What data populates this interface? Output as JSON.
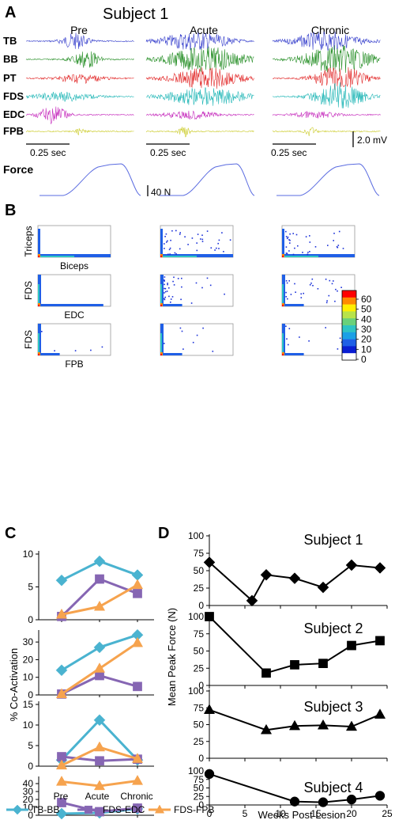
{
  "panels": {
    "A": "A",
    "B": "B",
    "C": "C",
    "D": "D"
  },
  "subject_title": "Subject 1",
  "conditions": [
    "Pre",
    "Acute",
    "Chronic"
  ],
  "panel_a": {
    "channels": [
      {
        "name": "TB",
        "color": "#2b35c9"
      },
      {
        "name": "BB",
        "color": "#1e8a1e"
      },
      {
        "name": "PT",
        "color": "#e02020"
      },
      {
        "name": "FDS",
        "color": "#17b3b3"
      },
      {
        "name": "EDC",
        "color": "#c21fb8"
      },
      {
        "name": "FPB",
        "color": "#c8c81c"
      }
    ],
    "time_scale": "0.25 sec",
    "emg_scale": "2.0 mV",
    "force_label": "Force",
    "force_scale": "40 N",
    "force_color": "#5a6be0"
  },
  "panel_b": {
    "rows": [
      {
        "ylabel": "Triceps",
        "xlabel": "Biceps"
      },
      {
        "ylabel": "FDS",
        "xlabel": "EDC"
      },
      {
        "ylabel": "FDS",
        "xlabel": "FPB"
      }
    ],
    "colorbar_ticks": [
      "60",
      "50",
      "40",
      "30",
      "20",
      "10",
      "0"
    ],
    "colorbar_colors": [
      "#ff0000",
      "#ff8a00",
      "#ffee00",
      "#b8e34a",
      "#6ad17a",
      "#2ec4c4",
      "#1aa0e6",
      "#1f5fe6",
      "#0a1ed2",
      "#ffffff"
    ]
  },
  "chart_data": [
    {
      "type": "line",
      "ylabel": "% Co-Activation",
      "categories": [
        "Pre",
        "Acute",
        "Chronic"
      ],
      "legend": "bottom",
      "subplots": [
        {
          "ylim": [
            0,
            10
          ],
          "yticks": [
            0,
            5,
            10
          ],
          "series": [
            {
              "name": "TB-BB",
              "values": [
                6.0,
                8.9,
                6.8
              ]
            },
            {
              "name": "FDS-EDC",
              "values": [
                0.5,
                6.2,
                4.0
              ]
            },
            {
              "name": "FDS-FPB",
              "values": [
                0.8,
                2.0,
                5.3
              ]
            }
          ]
        },
        {
          "ylim": [
            0,
            35
          ],
          "yticks": [
            0,
            10,
            20,
            30
          ],
          "series": [
            {
              "name": "TB-BB",
              "values": [
                14,
                27,
                34
              ]
            },
            {
              "name": "FDS-EDC",
              "values": [
                0.5,
                11,
                4.8
              ]
            },
            {
              "name": "FDS-FPB",
              "values": [
                0.5,
                15,
                29.5
              ]
            }
          ]
        },
        {
          "ylim": [
            0,
            15
          ],
          "yticks": [
            0,
            5,
            10,
            15
          ],
          "series": [
            {
              "name": "TB-BB",
              "values": [
                1.5,
                11.2,
                1.5
              ]
            },
            {
              "name": "FDS-EDC",
              "values": [
                2.3,
                1.3,
                1.7
              ]
            },
            {
              "name": "FDS-FPB",
              "values": [
                0.2,
                4.6,
                1.8
              ]
            }
          ]
        },
        {
          "ylim": [
            0,
            45
          ],
          "yticks": [
            0,
            10,
            20,
            30,
            40
          ],
          "series": [
            {
              "name": "TB-BB",
              "values": [
                2,
                3,
                8
              ]
            },
            {
              "name": "FDS-EDC",
              "values": [
                16,
                4.5,
                9
              ]
            },
            {
              "name": "FDS-FPB",
              "values": [
                42.5,
                37,
                43.5
              ]
            }
          ]
        }
      ],
      "series_styles": [
        {
          "name": "TB-BB",
          "color": "#4ab3d0",
          "marker": "diamond"
        },
        {
          "name": "FDS-EDC",
          "color": "#8666b3",
          "marker": "square"
        },
        {
          "name": "FDS-FPB",
          "color": "#f6a34e",
          "marker": "triangle"
        }
      ]
    },
    {
      "type": "line",
      "ylabel": "Mean Peak Force (N)",
      "xlabel": "Weeks Post Lesion",
      "xlim": [
        0,
        25
      ],
      "xticks": [
        0,
        5,
        10,
        15,
        20,
        25
      ],
      "ylim": [
        0,
        100
      ],
      "yticks": [
        0,
        25,
        50,
        75,
        100
      ],
      "color": "#000000",
      "subplots": [
        {
          "title": "Subject 1",
          "marker": "diamond",
          "x": [
            0,
            6,
            8,
            12,
            16,
            20,
            24
          ],
          "y": [
            62,
            7,
            44,
            39,
            26,
            58,
            54
          ]
        },
        {
          "title": "Subject 2",
          "marker": "square",
          "x": [
            0,
            8,
            12,
            16,
            20,
            24
          ],
          "y": [
            100,
            18,
            30,
            32,
            58,
            65
          ]
        },
        {
          "title": "Subject 3",
          "marker": "triangle",
          "x": [
            0,
            8,
            12,
            16,
            20,
            24
          ],
          "y": [
            72,
            42,
            48,
            49,
            47,
            65
          ]
        },
        {
          "title": "Subject 4",
          "marker": "circle",
          "x": [
            0,
            12,
            16,
            20,
            24
          ],
          "y": [
            91,
            10,
            8,
            16,
            27
          ]
        }
      ]
    }
  ]
}
